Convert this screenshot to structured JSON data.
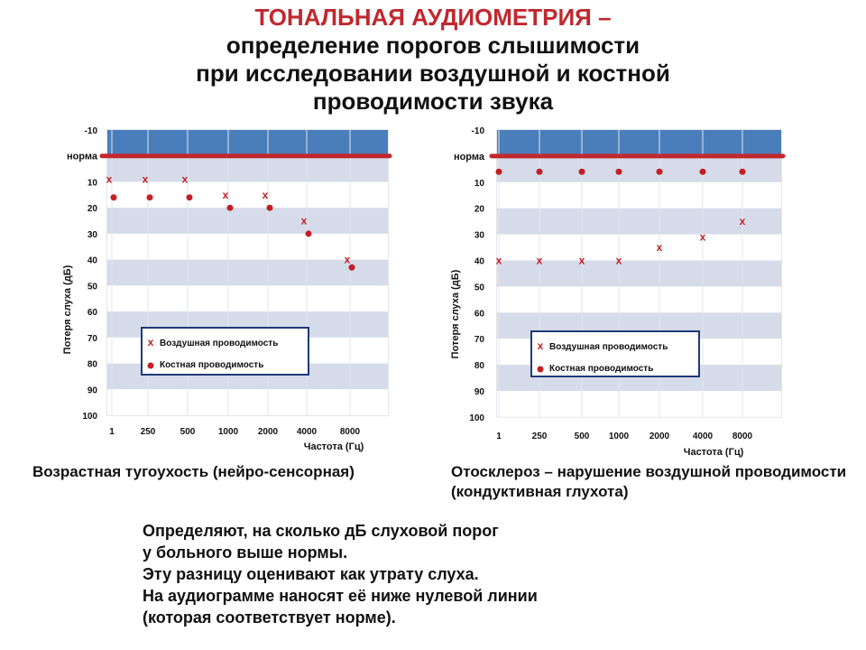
{
  "title": {
    "line1": "ТОНАЛЬНАЯ АУДИОМЕТРИЯ –",
    "line2": "определение порогов слышимости",
    "line3": "при исследовании воздушной и костной",
    "line4": "проводимости звука"
  },
  "colors": {
    "title_accent": "#c0282d",
    "band_dark": "#4a7ebb",
    "band_stripe": "#d5dbe8",
    "norm_line": "#c0282d",
    "marker": "#c41e24"
  },
  "chart_data": [
    {
      "type": "scatter",
      "title": "",
      "xlabel": "Частота (Гц)",
      "ylabel": "Потеря слуха (дБ)",
      "x_categories": [
        "1",
        "250",
        "500",
        "1000",
        "2000",
        "4000",
        "8000"
      ],
      "y_ticks": [
        "-10",
        "норма",
        "10",
        "20",
        "30",
        "40",
        "50",
        "60",
        "70",
        "80",
        "90",
        "100"
      ],
      "norm_label": "норма",
      "ylim": [
        -10,
        100
      ],
      "y_reversed": true,
      "legend_position": "center",
      "series": [
        {
          "name": "Воздушная проводимость",
          "marker": "x",
          "values": [
            9,
            9,
            9,
            15,
            15,
            25,
            40
          ]
        },
        {
          "name": "Костная проводимость",
          "marker": "o",
          "values": [
            16,
            16,
            16,
            20,
            20,
            30,
            43
          ]
        }
      ],
      "caption": "Возрастная тугоухость (нейро-сенсорная)"
    },
    {
      "type": "scatter",
      "title": "",
      "xlabel": "Частота (Гц)",
      "ylabel": "Потеря слуха (дБ)",
      "x_categories": [
        "1",
        "250",
        "500",
        "1000",
        "2000",
        "4000",
        "8000"
      ],
      "y_ticks": [
        "-10",
        "норма",
        "10",
        "20",
        "30",
        "40",
        "50",
        "60",
        "70",
        "80",
        "90",
        "100"
      ],
      "norm_label": "норма",
      "ylim": [
        -10,
        100
      ],
      "y_reversed": true,
      "legend_position": "center",
      "series": [
        {
          "name": "Воздушная проводимость",
          "marker": "x",
          "values": [
            40,
            40,
            40,
            40,
            35,
            31,
            25
          ]
        },
        {
          "name": "Костная проводимость",
          "marker": "o",
          "values": [
            6,
            6,
            6,
            6,
            6,
            6,
            6
          ]
        }
      ],
      "caption": "Отосклероз – нарушение воздушной проводимости  (кондуктивная глухота)"
    }
  ],
  "captions": {
    "left": "Возрастная тугоухость (нейро-сенсорная)",
    "right": "Отосклероз – нарушение воздушной проводимости  (кондуктивная глухота)"
  },
  "note": {
    "line1": "Определяют, на сколько дБ слуховой порог",
    "line2": "у больного выше нормы.",
    "line3": "Эту разницу оценивают как утрату слуха.",
    "line4": "На аудиограмме наносят её ниже нулевой линии",
    "line5": "(которая соответствует норме)."
  }
}
